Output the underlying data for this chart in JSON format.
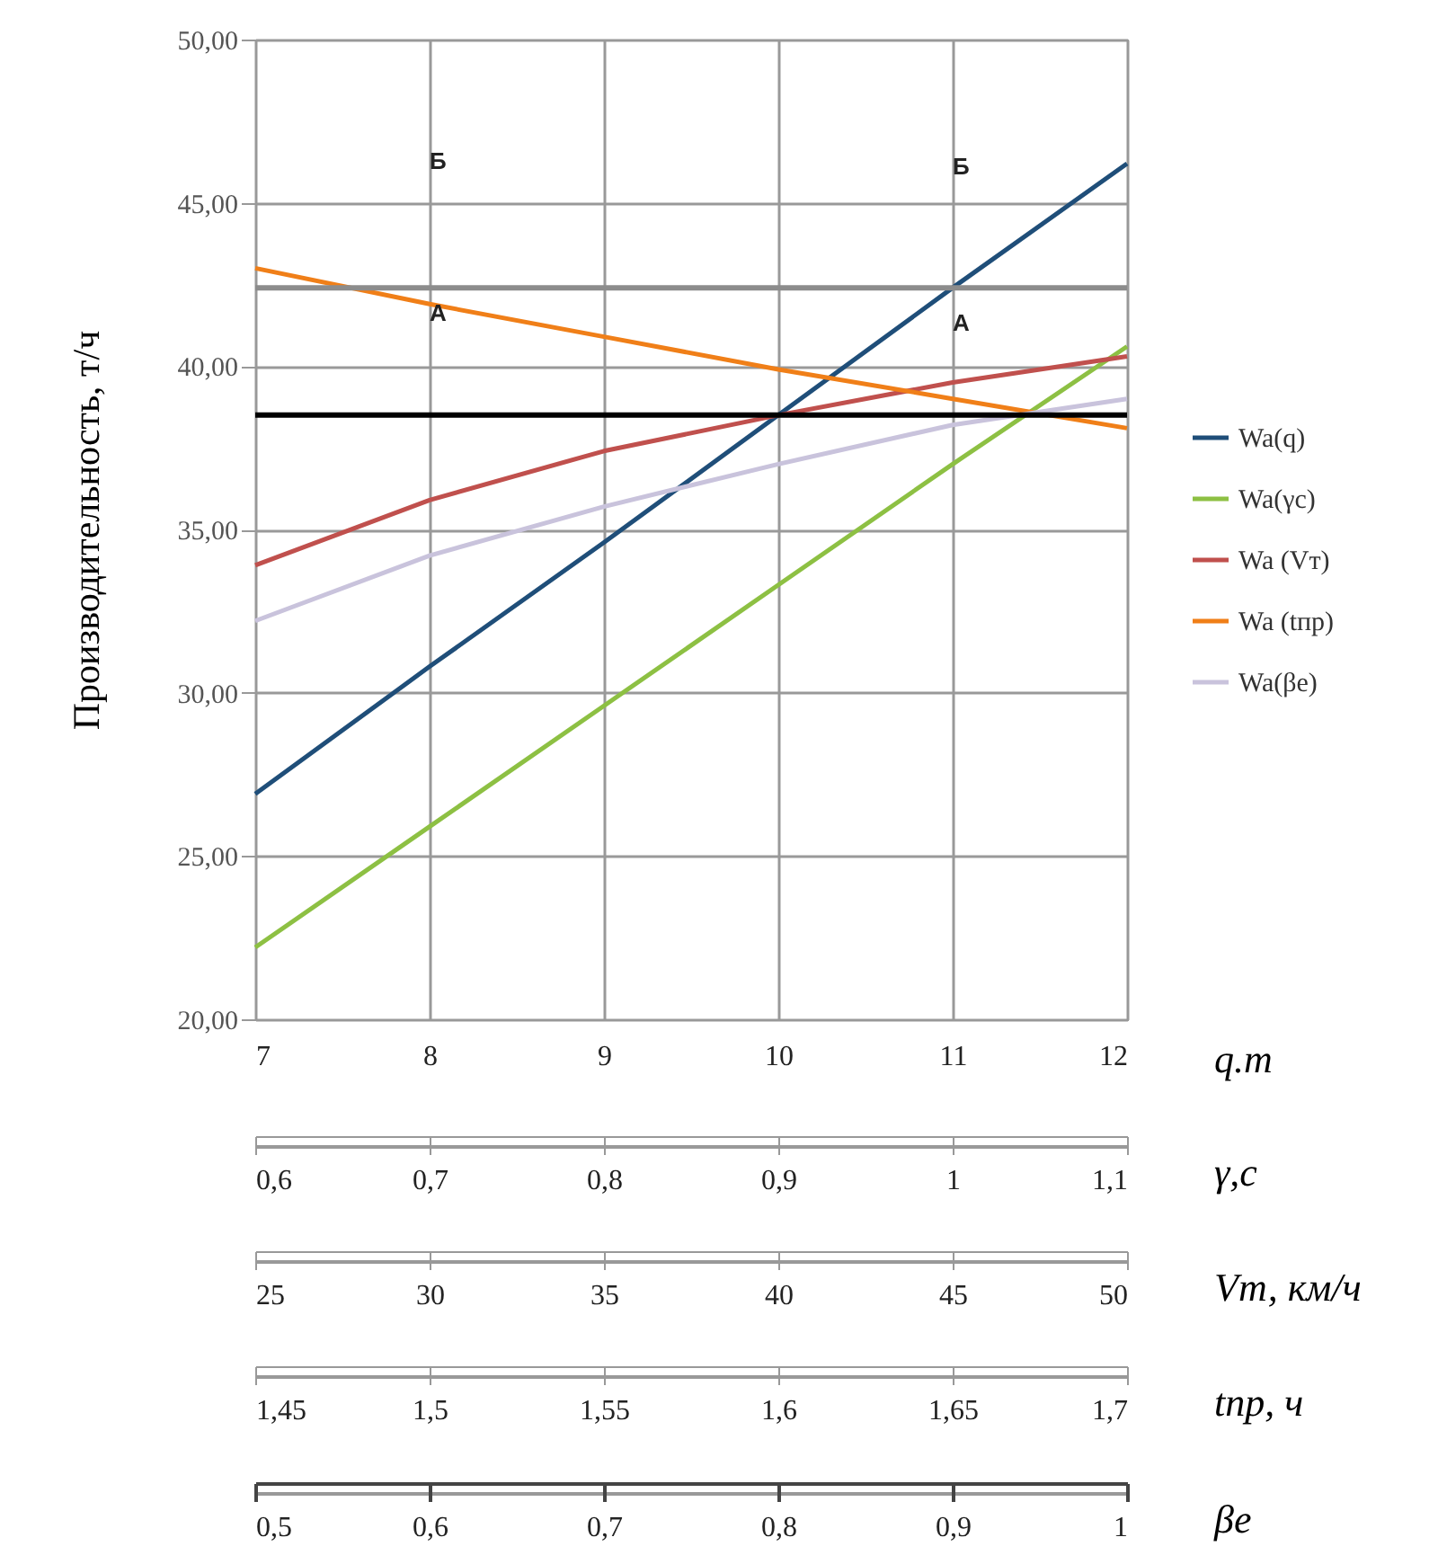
{
  "chart_data": {
    "type": "line",
    "ylabel": "Производительность, т/ч",
    "xlabel": "q.т",
    "x": [
      7,
      8,
      9,
      10,
      11,
      12
    ],
    "xlim": [
      7,
      12
    ],
    "xticks": [
      7,
      8,
      9,
      10,
      11,
      12
    ],
    "x2label": "γ,с",
    "x2lim": [
      0.6,
      1.1
    ],
    "x2ticks": [
      {
        "value": 0.6,
        "label": "0,6"
      },
      {
        "value": 0.7,
        "label": "0,7"
      },
      {
        "value": 0.8,
        "label": "0,8"
      },
      {
        "value": 0.9,
        "label": "0,9"
      },
      1,
      {
        "value": 1.1,
        "label": "1,1"
      }
    ],
    "ylim": [
      20,
      50
    ],
    "yticks": [
      {
        "value": 20,
        "label": "20,00"
      },
      {
        "value": 25,
        "label": "25,00"
      },
      {
        "value": 30,
        "label": "30,00"
      },
      {
        "value": 35,
        "label": "35,00"
      },
      {
        "value": 40,
        "label": "40,00"
      },
      {
        "value": 45,
        "label": "45,00"
      },
      {
        "value": 50,
        "label": "50,00"
      }
    ],
    "grid": true,
    "legend": "right",
    "line_style": "solid",
    "series": [
      {
        "name": "Wa(q)",
        "color": "#1f4e79",
        "values": [
          26.9,
          30.8,
          34.6,
          38.5,
          42.4,
          46.2
        ]
      },
      {
        "name": "Wa(γc)",
        "color": "#8dc043",
        "values": [
          22.2,
          25.9,
          29.6,
          33.3,
          37.0,
          40.6
        ]
      },
      {
        "name": "Wa (Vт)",
        "color": "#c0504d",
        "values": [
          33.9,
          35.9,
          37.4,
          38.5,
          39.5,
          40.3
        ]
      },
      {
        "name": "Wa (tпр)",
        "color": "#f07f18",
        "values": [
          43.0,
          41.9,
          40.9,
          39.9,
          39.0,
          38.1
        ]
      },
      {
        "name": "Wa(βe)",
        "color": "#c9c3dc",
        "values": [
          32.2,
          34.2,
          35.7,
          37.0,
          38.2,
          39.0
        ]
      }
    ],
    "ref_lines": [
      {
        "axis": "y",
        "value": 38.5,
        "color": "#000000"
      },
      {
        "axis": "y",
        "value": 42.4,
        "color": "#8c8c8c"
      }
    ],
    "annotations": [
      "Б",
      "Б",
      "А",
      "А",
      "25",
      "30",
      "35",
      "40",
      "45",
      "50",
      "Vт, км/ч",
      "1,45",
      "1,5",
      "1,55",
      "1,6",
      "1,65",
      "1,7",
      "tпр, ч",
      "0,5",
      "0,6",
      "0,7",
      "0,8",
      "0,9",
      "1",
      "βe"
    ]
  }
}
